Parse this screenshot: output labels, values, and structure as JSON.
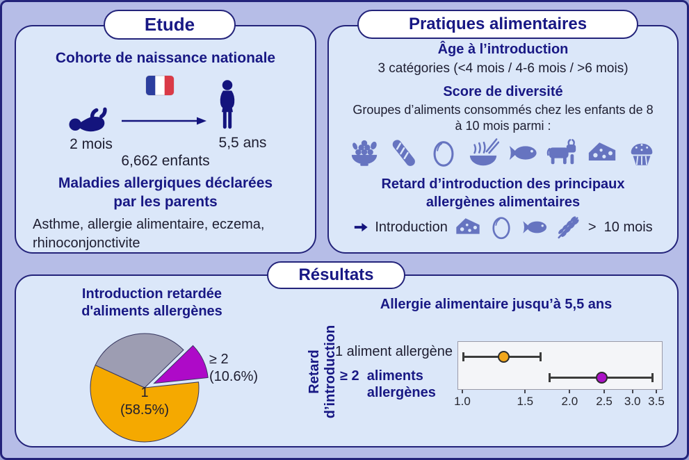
{
  "colors": {
    "background": "#b6bde7",
    "panel": "#dbe7f9",
    "navy": "#181884",
    "dark_text": "#1d1d30",
    "slate_icon": "#6674c0",
    "pie_orange": "#f5a900",
    "pie_gray": "#9d9db2",
    "pie_purple": "#ae0ac8"
  },
  "study_panel": {
    "title": "Etude",
    "heading": "Cohorte de naissance nationale",
    "baby_label": "2 mois",
    "child_label": "5,5 ans",
    "cohort_size": "6,662 enfants",
    "diseases_heading": "Maladies allergiques déclarées\npar les parents",
    "diseases_list": "Asthme, allergie alimentaire, eczema, rhinoconjonctivite"
  },
  "practices_panel": {
    "title": "Pratiques alimentaires",
    "age_heading": "Âge à l’introduction",
    "age_categories": "3 catégories (<4 mois / 4-6 mois / >6 mois)",
    "diversity_heading": "Score de diversité",
    "diversity_description": "Groupes d’aliments consommés chez les enfants de 8\nà 10 mois parmi :",
    "food_icons": [
      "fruit-bowl",
      "baguette",
      "egg",
      "noodle-bowl",
      "fish",
      "cow",
      "cheese",
      "muffin"
    ],
    "delay_heading": "Retard d’introduction des principaux\nallergènes alimentaires",
    "introduction_label": "Introduction",
    "introduction_icons": [
      "cheese",
      "egg",
      "fish",
      "wheat"
    ],
    "introduction_threshold": ">  10 mois"
  },
  "results_panel": {
    "title": "Résultats",
    "pie_title": "Introduction retardée\nd'aliments allergènes",
    "forest_title": "Allergie alimentaire jusqu’à 5,5 ans",
    "y_axis_label": "Retard\nd’introduction"
  },
  "chart_data": [
    {
      "type": "pie",
      "title": "Introduction retardée d'aliments allergènes",
      "slices": [
        {
          "label": "≥ 2",
          "pct_text": "(10.6%)",
          "value_pct": 10.6,
          "color": "#ae0ac8",
          "exploded": true
        },
        {
          "label": "",
          "pct_text": "",
          "value_pct": 30.9,
          "color": "#9d9db2",
          "exploded": false
        },
        {
          "label": "1",
          "pct_text": "(58.5%)",
          "value_pct": 58.5,
          "color": "#f5a900",
          "exploded": false
        }
      ],
      "label_main": "1\n(58.5%)",
      "label_exploded": "≥ 2\n(10.6%)"
    },
    {
      "type": "scatter",
      "subtype": "forest-plot",
      "title": "Allergie alimentaire jusqu’à 5,5 ans",
      "ylabel": "Retard d’introduction",
      "x_scale": "log",
      "xlim": [
        1.0,
        3.5
      ],
      "x_ticks": [
        1.0,
        1.5,
        2.0,
        2.5,
        3.0,
        3.5
      ],
      "x_tick_labels": [
        "1.0",
        "1.5",
        "2.0",
        "2.5",
        "3.0",
        "3.5"
      ],
      "error_bars": true,
      "rows": [
        {
          "label": "1 aliment allergène",
          "label_lines": "1 aliment allergène",
          "or": 1.3,
          "ci_low": 1.0,
          "ci_high": 1.65,
          "color": "#f2a71c",
          "bold": false
        },
        {
          "label": "≥ 2 aliments allergènes",
          "label_lines": "≥ 2  aliments\n       allergènes",
          "or": 2.45,
          "ci_low": 1.75,
          "ci_high": 3.4,
          "color": "#ab12c6",
          "bold": true
        }
      ]
    }
  ]
}
